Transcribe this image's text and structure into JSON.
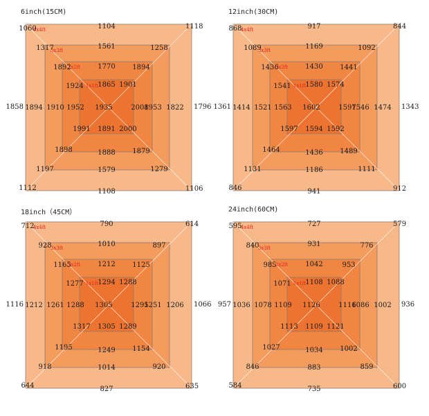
{
  "colors": {
    "ring_4x4": "#f8b98a",
    "ring_3x3": "#f49c5e",
    "ring_2x2": "#f08641",
    "ring_1x1": "#ec7430",
    "size_label": "#e8221b",
    "value_text": "#1a1a1a",
    "border": "#8c7a6e",
    "diagonal": "#ffffff"
  },
  "size_labels": [
    "4x4ft",
    "3x3ft",
    "2x2ft",
    "1x1ft"
  ],
  "panels": [
    {
      "title": "6inch(15CM)",
      "values": {
        "outer": {
          "tl": "1060",
          "t": "1104",
          "tr": "1118",
          "r": "1796",
          "br": "1106",
          "b": "1108",
          "bl": "1112",
          "l": "1858"
        },
        "ring4": {
          "tl": "1317",
          "t": "1561",
          "tr": "1258",
          "r": "1822",
          "br": "1279",
          "b": "1579",
          "bl": "1197",
          "l": "1894"
        },
        "ring3": {
          "tl": "1892",
          "t": "1770",
          "tr": "1894",
          "r": "1953",
          "br": "1879",
          "b": "1888",
          "bl": "1898",
          "l": "1910"
        },
        "ring2": {
          "tl": "1924",
          "t": "1865",
          "tr": "1901",
          "r": "2008",
          "br": "2000",
          "b": "1891",
          "bl": "1991",
          "l": "1952"
        },
        "center": "1935"
      }
    },
    {
      "title": "12inch(30CM)",
      "values": {
        "outer": {
          "tl": "868",
          "t": "917",
          "tr": "844",
          "r": "1343",
          "br": "912",
          "b": "941",
          "bl": "846",
          "l": "1361"
        },
        "ring4": {
          "tl": "1089",
          "t": "1169",
          "tr": "1092",
          "r": "1474",
          "br": "1111",
          "b": "1186",
          "bl": "1131",
          "l": "1414"
        },
        "ring3": {
          "tl": "1436",
          "t": "1430",
          "tr": "1441",
          "r": "1546",
          "br": "1489",
          "b": "1436",
          "bl": "1464",
          "l": "1521"
        },
        "ring2": {
          "tl": "1541",
          "t": "1580",
          "tr": "1574",
          "r": "1597",
          "br": "1592",
          "b": "1594",
          "bl": "1597",
          "l": "1563"
        },
        "center": "1602"
      }
    },
    {
      "title": "18inch（45CM）",
      "values": {
        "outer": {
          "tl": "712",
          "t": "790",
          "tr": "614",
          "r": "1066",
          "br": "635",
          "b": "827",
          "bl": "644",
          "l": "1116"
        },
        "ring4": {
          "tl": "928",
          "t": "1010",
          "tr": "897",
          "r": "1206",
          "br": "920",
          "b": "1014",
          "bl": "918",
          "l": "1212"
        },
        "ring3": {
          "tl": "1165",
          "t": "1212",
          "tr": "1125",
          "r": "1251",
          "br": "1154",
          "b": "1249",
          "bl": "1195",
          "l": "1261"
        },
        "ring2": {
          "tl": "1277",
          "t": "1294",
          "tr": "1288",
          "r": "1295",
          "br": "1289",
          "b": "1305",
          "bl": "1317",
          "l": "1288"
        },
        "center": "1305"
      }
    },
    {
      "title": "24inch(60CM)",
      "values": {
        "outer": {
          "tl": "595",
          "t": "727",
          "tr": "579",
          "r": "936",
          "br": "600",
          "b": "735",
          "bl": "584",
          "l": "957"
        },
        "ring4": {
          "tl": "840",
          "t": "931",
          "tr": "776",
          "r": "1002",
          "br": "859",
          "b": "883",
          "bl": "846",
          "l": "1036"
        },
        "ring3": {
          "tl": "985",
          "t": "1042",
          "tr": "953",
          "r": "1086",
          "br": "1002",
          "b": "1034",
          "bl": "1027",
          "l": "1078"
        },
        "ring2": {
          "tl": "1071",
          "t": "1108",
          "tr": "1088",
          "r": "1116",
          "br": "1121",
          "b": "1109",
          "bl": "1113",
          "l": "1109"
        },
        "center": "1126"
      }
    }
  ]
}
